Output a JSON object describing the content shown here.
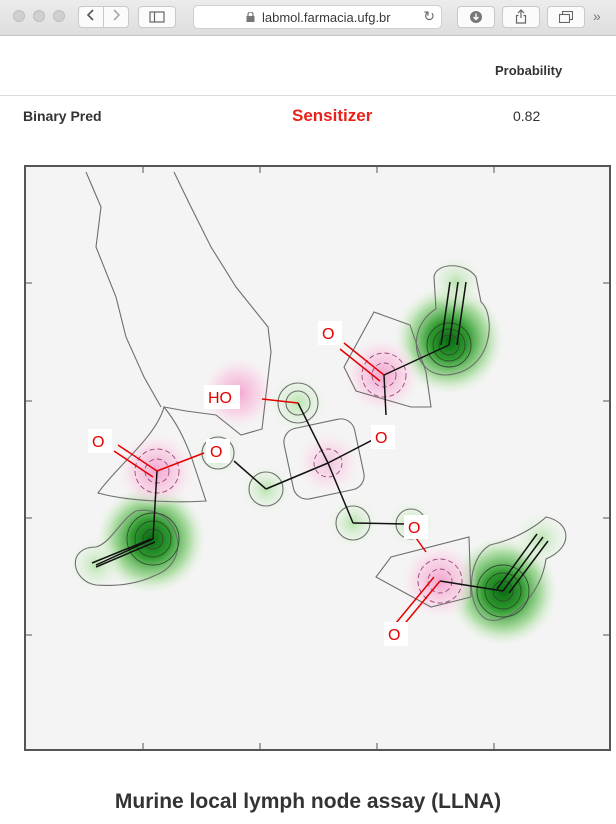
{
  "browser": {
    "url": "labmol.farmacia.ufg.br"
  },
  "table": {
    "probability_header": "Probability",
    "row_label": "Binary Pred",
    "prediction": "Sensitizer",
    "probability": "0.82",
    "prediction_color": "#e8221a"
  },
  "molecule": {
    "atom_labels": [
      "O",
      "HO",
      "O",
      "O",
      "O",
      "O",
      "O"
    ]
  },
  "footer": {
    "title": "Murine local lymph node assay (LLNA)"
  }
}
